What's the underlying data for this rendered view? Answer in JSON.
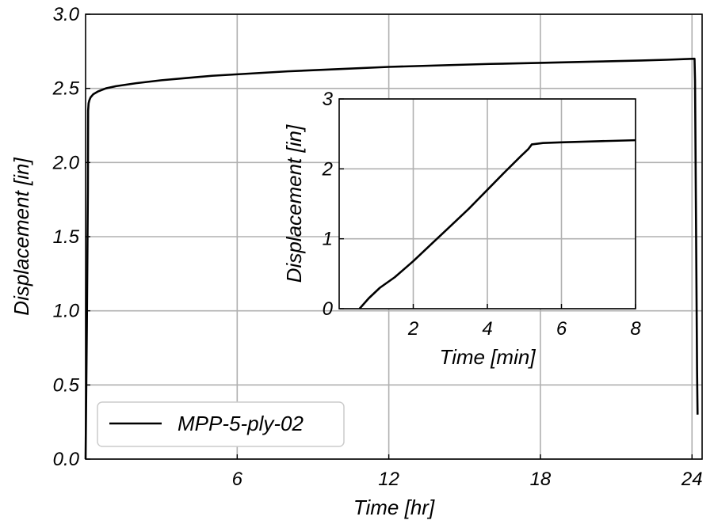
{
  "chart_data": [
    {
      "type": "line",
      "xlabel": "Time [hr]",
      "ylabel": "Displacement [in]",
      "xlim": [
        0,
        24.4
      ],
      "ylim": [
        0,
        3.0
      ],
      "xticks": [
        6,
        12,
        18,
        24
      ],
      "xtick_labels": [
        "6",
        "12",
        "18",
        "24"
      ],
      "yticks": [
        0,
        0.5,
        1.0,
        1.5,
        2.0,
        2.5,
        3.0
      ],
      "ytick_labels": [
        "0.0",
        "0.5",
        "1.0",
        "1.5",
        "2.0",
        "2.5",
        "3.0"
      ],
      "grid": true,
      "legend": "lower-left",
      "series": [
        {
          "name": "MPP-5-ply-02",
          "color": "#000000",
          "x": [
            0,
            0.05,
            0.09,
            0.1,
            0.12,
            0.15,
            0.2,
            0.3,
            0.5,
            0.8,
            1.2,
            1.6,
            2,
            3,
            4,
            5,
            6,
            8,
            10,
            12,
            14,
            16,
            18,
            20,
            22,
            23,
            24.1,
            24.12,
            24.2,
            24.22
          ],
          "y": [
            0,
            0.9,
            1.8,
            2.35,
            2.4,
            2.42,
            2.44,
            2.46,
            2.48,
            2.5,
            2.515,
            2.525,
            2.535,
            2.555,
            2.57,
            2.585,
            2.595,
            2.615,
            2.63,
            2.645,
            2.655,
            2.665,
            2.672,
            2.68,
            2.688,
            2.693,
            2.7,
            2.55,
            0.6,
            0.3
          ]
        }
      ]
    },
    {
      "type": "line",
      "xlabel": "Time [min]",
      "ylabel": "Displacement [in]",
      "xlim": [
        0,
        8
      ],
      "ylim": [
        0,
        3
      ],
      "xticks": [
        2,
        4,
        6,
        8
      ],
      "xtick_labels": [
        "2",
        "4",
        "6",
        "8"
      ],
      "yticks": [
        0,
        1,
        2,
        3
      ],
      "ytick_labels": [
        "0",
        "1",
        "2",
        "3"
      ],
      "grid": true,
      "series": [
        {
          "color": "#000000",
          "x": [
            0.55,
            0.8,
            1.1,
            1.5,
            2,
            2.5,
            3,
            3.5,
            4,
            4.5,
            4.9,
            5.1,
            5.2,
            5.5,
            6,
            7,
            8
          ],
          "y": [
            0,
            0.15,
            0.3,
            0.45,
            0.68,
            0.93,
            1.18,
            1.43,
            1.7,
            1.97,
            2.18,
            2.28,
            2.35,
            2.37,
            2.38,
            2.395,
            2.41
          ]
        }
      ]
    }
  ]
}
